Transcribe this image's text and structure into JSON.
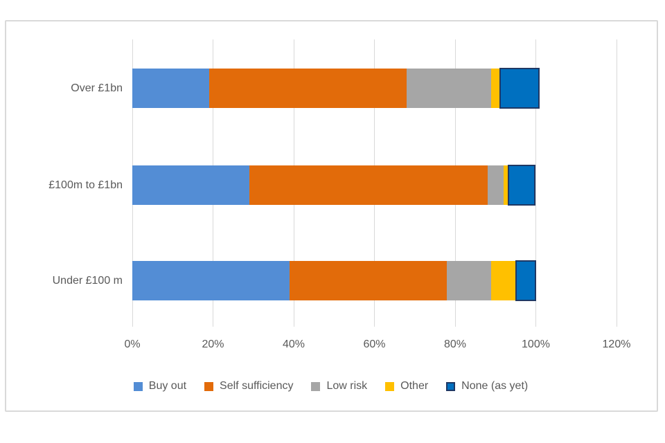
{
  "chart_data": {
    "type": "bar",
    "orientation": "horizontal-stacked",
    "title": "",
    "xlabel": "",
    "ylabel": "",
    "categories": [
      "Over £1bn",
      "£100m to £1bn",
      "Under £100 m"
    ],
    "series": [
      {
        "name": "Buy out",
        "color": "#538DD5",
        "values": [
          19,
          29,
          39
        ]
      },
      {
        "name": "Self sufficiency",
        "color": "#E26B0A",
        "values": [
          49,
          59,
          39
        ]
      },
      {
        "name": "Low risk",
        "color": "#A6A6A6",
        "values": [
          21,
          4,
          11
        ]
      },
      {
        "name": "Other",
        "color": "#FFC000",
        "values": [
          2,
          1,
          6
        ]
      },
      {
        "name": "None (as yet)",
        "color": "#0070C0",
        "border_color": "#1F3864",
        "values": [
          10,
          7,
          5
        ]
      }
    ],
    "x_axis": {
      "min": 0,
      "max": 120,
      "tick_step": 20,
      "tick_labels": [
        "0%",
        "20%",
        "40%",
        "60%",
        "80%",
        "100%",
        "120%"
      ]
    },
    "grid": true,
    "legend_position": "bottom",
    "colors": {
      "text": "#595959",
      "gridline": "#D9D9D9",
      "frame_border": "#D9D9D9",
      "background": "#FFFFFF"
    }
  }
}
